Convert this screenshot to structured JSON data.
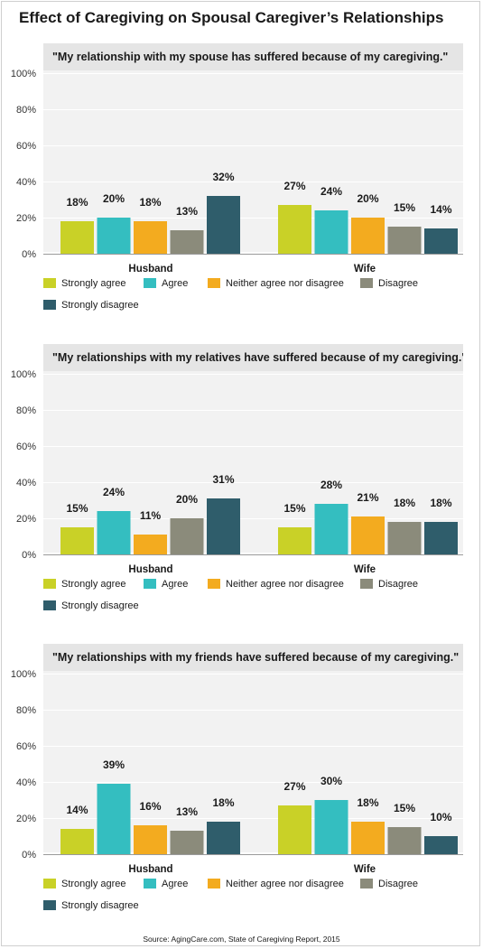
{
  "title": "Effect of Caregiving on Spousal Caregiver’s Relationships",
  "source": "Source: AgingCare.com, State of Caregiving Report, 2015",
  "colors": {
    "Strongly agree": "#c9d127",
    "Agree": "#34bec0",
    "Neither agree nor disagree": "#f3ab1f",
    "Disagree": "#8b8b7b",
    "Strongly disagree": "#2f5d6b"
  },
  "legend": [
    "Strongly agree",
    "Agree",
    "Neither agree nor disagree",
    "Disagree",
    "Strongly disagree"
  ],
  "chart_data": [
    {
      "type": "bar",
      "title": "\"My relationship with my spouse has suffered because of my caregiving.\"",
      "categories": [
        "Husband",
        "Wife"
      ],
      "yticks": [
        "0%",
        "20%",
        "40%",
        "60%",
        "80%",
        "100%"
      ],
      "ylim": [
        0,
        100
      ],
      "grid": true,
      "series": [
        {
          "name": "Strongly agree",
          "values": [
            18,
            27
          ]
        },
        {
          "name": "Agree",
          "values": [
            20,
            24
          ]
        },
        {
          "name": "Neither agree nor disagree",
          "values": [
            18,
            20
          ]
        },
        {
          "name": "Disagree",
          "values": [
            13,
            15
          ]
        },
        {
          "name": "Strongly disagree",
          "values": [
            32,
            14
          ]
        }
      ]
    },
    {
      "type": "bar",
      "title": "\"My relationships with my relatives have suffered because of my caregiving.\"",
      "categories": [
        "Husband",
        "Wife"
      ],
      "yticks": [
        "0%",
        "20%",
        "40%",
        "60%",
        "80%",
        "100%"
      ],
      "ylim": [
        0,
        100
      ],
      "grid": true,
      "series": [
        {
          "name": "Strongly agree",
          "values": [
            15,
            15
          ]
        },
        {
          "name": "Agree",
          "values": [
            24,
            28
          ]
        },
        {
          "name": "Neither agree nor disagree",
          "values": [
            11,
            21
          ]
        },
        {
          "name": "Disagree",
          "values": [
            20,
            18
          ]
        },
        {
          "name": "Strongly disagree",
          "values": [
            31,
            18
          ]
        }
      ]
    },
    {
      "type": "bar",
      "title": "\"My relationships with my friends have suffered because of my caregiving.\"",
      "categories": [
        "Husband",
        "Wife"
      ],
      "yticks": [
        "0%",
        "20%",
        "40%",
        "60%",
        "80%",
        "100%"
      ],
      "ylim": [
        0,
        100
      ],
      "grid": true,
      "series": [
        {
          "name": "Strongly agree",
          "values": [
            14,
            27
          ]
        },
        {
          "name": "Agree",
          "values": [
            39,
            30
          ]
        },
        {
          "name": "Neither agree nor disagree",
          "values": [
            16,
            18
          ]
        },
        {
          "name": "Disagree",
          "values": [
            13,
            15
          ]
        },
        {
          "name": "Strongly disagree",
          "values": [
            18,
            10
          ]
        }
      ]
    }
  ]
}
